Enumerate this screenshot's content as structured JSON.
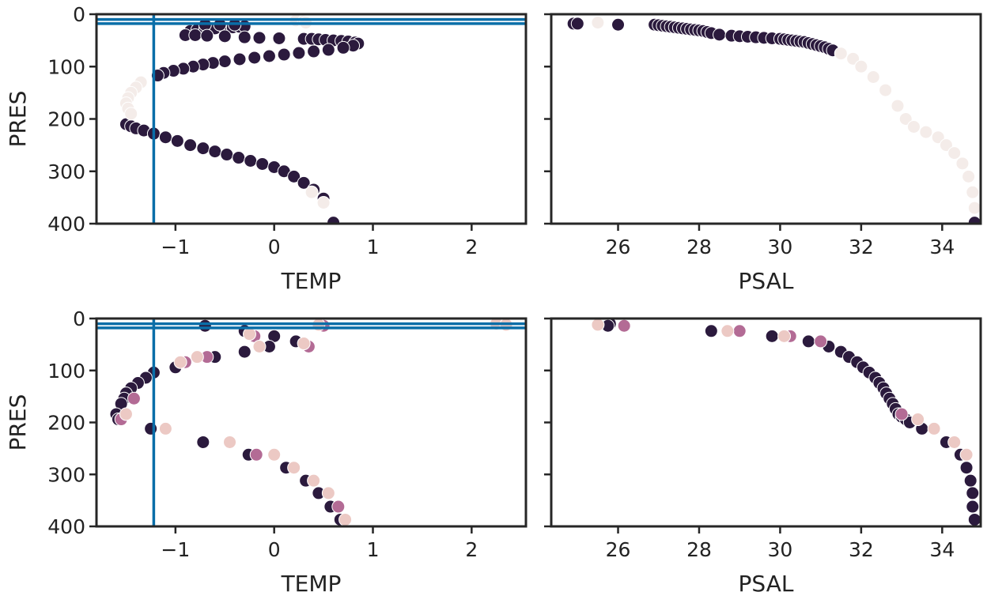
{
  "colors": {
    "axis": "#262626",
    "ref_line": "#0a6ea8",
    "profile_dark": "#2b1a3d",
    "profile_mid": "#b36b95",
    "profile_light": "#ecc9c4",
    "profile_faint": "#f4ece9"
  },
  "chart_data": [
    {
      "type": "scatter",
      "panel": "top-left",
      "xlabel": "TEMP",
      "ylabel": "PRES",
      "xlim": [
        -1.8,
        2.55
      ],
      "ylim": [
        400,
        0
      ],
      "xticks": [
        "-1",
        "0",
        "1",
        "2"
      ],
      "yticks": [
        "0",
        "100",
        "200",
        "300",
        "400"
      ],
      "reference_lines": {
        "vertical_x": [
          -1.22
        ],
        "horizontal_y": [
          10,
          18
        ]
      },
      "series": [
        {
          "x": [
            -0.85,
            -0.78,
            -0.7,
            -0.6,
            -0.5,
            -0.42,
            -0.35,
            -0.3,
            -0.7,
            -0.55,
            -0.4,
            -0.9,
            -0.8,
            -0.68,
            -0.5,
            -0.3,
            -0.15,
            0.05,
            0.3,
            0.38,
            0.45,
            0.52,
            0.6,
            0.68,
            0.75,
            0.82,
            0.85,
            0.8,
            0.7,
            0.55,
            0.4,
            0.25,
            0.1,
            -0.05,
            -0.2,
            -0.35,
            -0.5,
            -0.62,
            -0.72,
            -0.82,
            -0.92,
            -1.02,
            -1.12,
            -1.18,
            -1.5,
            -1.45,
            -1.4,
            -1.32,
            -1.22,
            -1.1,
            -0.98,
            -0.85,
            -0.72,
            -0.6,
            -0.48,
            -0.36,
            -0.24,
            -0.12,
            0.0,
            0.1,
            0.2,
            0.3,
            0.4,
            0.5,
            0.6
          ],
          "y": [
            32,
            30,
            28,
            27,
            26,
            25,
            24,
            23,
            20,
            20,
            20,
            40,
            40,
            41,
            42,
            44,
            45,
            46,
            47,
            47,
            48,
            49,
            50,
            51,
            52,
            54,
            56,
            60,
            64,
            68,
            71,
            74,
            77,
            80,
            83,
            86,
            90,
            93,
            96,
            100,
            104,
            108,
            112,
            117,
            210,
            214,
            218,
            222,
            228,
            235,
            242,
            250,
            256,
            262,
            268,
            274,
            280,
            286,
            292,
            300,
            310,
            322,
            335,
            352,
            398
          ],
          "tone": "dark"
        },
        {
          "x": [
            0.22,
            0.3,
            0.32,
            0.38,
            0.5,
            -1.35,
            -1.4,
            -1.45,
            -1.48,
            -1.5,
            -1.48,
            -1.45
          ],
          "y": [
            12,
            14,
            16,
            340,
            360,
            130,
            140,
            150,
            160,
            170,
            180,
            190
          ],
          "tone": "faint"
        }
      ]
    },
    {
      "type": "scatter",
      "panel": "top-right",
      "xlabel": "PSAL",
      "ylabel": "",
      "xlim": [
        24.35,
        34.95
      ],
      "ylim": [
        400,
        0
      ],
      "xticks": [
        "26",
        "28",
        "30",
        "32",
        "34"
      ],
      "yticks": [
        "0",
        "100",
        "200",
        "300",
        "400"
      ],
      "series": [
        {
          "x": [
            24.9,
            25.0,
            26.0,
            26.9,
            27.0,
            27.1,
            27.2,
            27.3,
            27.4,
            27.5,
            27.6,
            27.7,
            27.8,
            27.9,
            28.0,
            28.1,
            28.2,
            28.3,
            28.5,
            28.8,
            29.0,
            29.2,
            29.4,
            29.6,
            29.8,
            30.0,
            30.1,
            30.2,
            30.3,
            30.4,
            30.5,
            30.6,
            30.7,
            30.8,
            30.9,
            31.0,
            31.1,
            31.2,
            31.3,
            34.8
          ],
          "y": [
            18,
            18,
            20,
            20,
            21,
            22,
            23,
            24,
            25,
            26,
            27,
            28,
            29,
            30,
            31,
            32,
            34,
            36,
            39,
            41,
            42,
            43,
            44,
            45,
            46,
            47,
            48,
            49,
            50,
            51,
            52,
            53,
            55,
            57,
            59,
            61,
            63,
            66,
            69,
            398
          ],
          "tone": "dark"
        },
        {
          "x": [
            25.5,
            31.5,
            31.8,
            32.0,
            32.3,
            32.6,
            32.9,
            33.1,
            33.3,
            33.6,
            33.9,
            34.1,
            34.3,
            34.5,
            34.65,
            34.75,
            34.8
          ],
          "y": [
            16,
            75,
            85,
            100,
            120,
            145,
            175,
            200,
            215,
            225,
            235,
            250,
            265,
            285,
            310,
            340,
            370
          ],
          "tone": "faint"
        }
      ]
    },
    {
      "type": "scatter",
      "panel": "bottom-left",
      "xlabel": "TEMP",
      "ylabel": "PRES",
      "xlim": [
        -1.8,
        2.55
      ],
      "ylim": [
        400,
        0
      ],
      "xticks": [
        "-1",
        "0",
        "1",
        "2"
      ],
      "yticks": [
        "0",
        "100",
        "200",
        "300",
        "400"
      ],
      "reference_lines": {
        "vertical_x": [
          -1.22
        ],
        "horizontal_y": [
          10,
          18
        ]
      },
      "series": [
        {
          "x": [
            -0.7,
            -0.3,
            0.0,
            -0.05,
            -0.3,
            0.22,
            -0.6,
            -1.0,
            -1.22,
            -1.3,
            -1.38,
            -1.45,
            -1.5,
            -1.52,
            -1.55,
            -1.6,
            -1.58,
            -1.25,
            -0.72,
            -0.26,
            0.12,
            0.32,
            0.45,
            0.57,
            0.67
          ],
          "y": [
            14,
            24,
            34,
            54,
            64,
            44,
            74,
            94,
            104,
            114,
            124,
            134,
            144,
            154,
            164,
            184,
            194,
            212,
            238,
            262,
            287,
            312,
            336,
            362,
            387
          ],
          "tone": "dark"
        },
        {
          "x": [
            0.5,
            -0.2,
            0.35,
            -0.68,
            -0.9,
            -1.42,
            -1.55,
            -0.18,
            0.65
          ],
          "y": [
            14,
            34,
            54,
            74,
            84,
            154,
            194,
            262,
            362
          ],
          "tone": "mid"
        },
        {
          "x": [
            0.45,
            -0.25,
            -0.15,
            0.3,
            -0.78,
            -0.95,
            -1.5,
            -1.1,
            -0.45,
            0.0,
            0.2,
            0.4,
            0.55,
            0.72,
            2.25,
            2.35
          ],
          "y": [
            12,
            30,
            54,
            48,
            74,
            84,
            184,
            212,
            238,
            262,
            287,
            312,
            336,
            387,
            10,
            12
          ],
          "tone": "light"
        }
      ]
    },
    {
      "type": "scatter",
      "panel": "bottom-right",
      "xlabel": "PSAL",
      "ylabel": "",
      "xlim": [
        24.35,
        34.95
      ],
      "ylim": [
        400,
        0
      ],
      "xticks": [
        "26",
        "28",
        "30",
        "32",
        "34"
      ],
      "yticks": [
        "0",
        "100",
        "200",
        "300",
        "400"
      ],
      "series": [
        {
          "x": [
            25.8,
            25.75,
            28.3,
            29.8,
            30.7,
            31.2,
            31.5,
            31.7,
            31.9,
            32.05,
            32.2,
            32.35,
            32.45,
            32.55,
            32.62,
            32.7,
            32.78,
            32.85,
            32.92,
            33.0,
            33.1,
            33.2,
            33.5,
            34.1,
            34.45,
            34.6,
            34.7,
            34.75,
            34.75,
            34.8
          ],
          "y": [
            10,
            14,
            24,
            34,
            44,
            54,
            64,
            74,
            84,
            94,
            104,
            114,
            124,
            134,
            144,
            154,
            164,
            174,
            184,
            189,
            194,
            200,
            212,
            238,
            262,
            287,
            312,
            336,
            362,
            387
          ],
          "tone": "dark"
        },
        {
          "x": [
            26.15,
            29.0,
            30.25,
            31.0,
            33.0
          ],
          "y": [
            14,
            24,
            34,
            44,
            184
          ],
          "tone": "mid"
        },
        {
          "x": [
            25.5,
            28.7,
            30.1,
            33.4,
            33.8,
            34.3,
            34.6
          ],
          "y": [
            12,
            24,
            34,
            194,
            212,
            238,
            262
          ],
          "tone": "light"
        }
      ]
    }
  ]
}
